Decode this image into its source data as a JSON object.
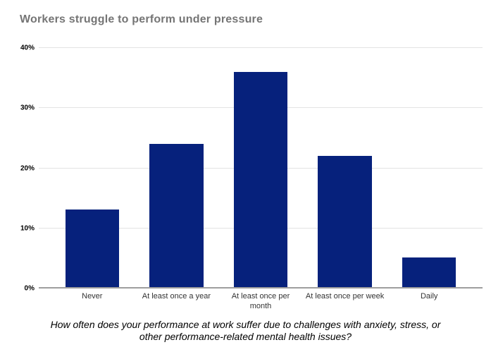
{
  "page": {
    "caption": "How often does your performance at work suffer due to challenges with anxiety, stress, or other performance-related mental health issues?"
  },
  "chart_data": {
    "type": "bar",
    "title": "Workers struggle to perform under pressure",
    "categories": [
      "Never",
      "At least once a year",
      "At least once per month",
      "At least once per week",
      "Daily"
    ],
    "values": [
      13,
      24,
      36,
      22,
      5
    ],
    "unit": "%",
    "xlabel": "",
    "ylabel": "",
    "ylim": [
      0,
      40
    ],
    "ytick_values": [
      0,
      10,
      20,
      30,
      40
    ],
    "ytick_labels": [
      "0%",
      "10%",
      "20%",
      "30%",
      "40%"
    ],
    "grid": true,
    "legend": "none",
    "colors": {
      "bar": "#06217c",
      "title": "#757575",
      "gridline": "#e3e3e3",
      "axis": "#9e9e9e",
      "tick": "#000000",
      "category": "#333333",
      "caption": "#000000",
      "background": "#ffffff"
    }
  }
}
